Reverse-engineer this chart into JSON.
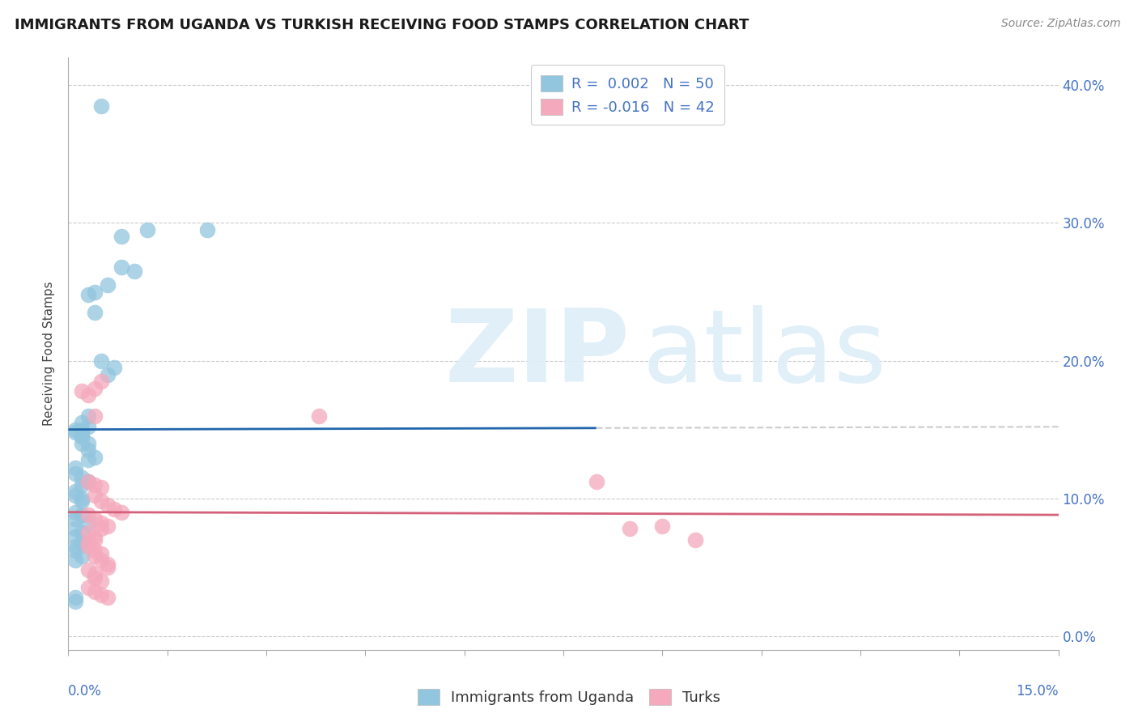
{
  "title": "IMMIGRANTS FROM UGANDA VS TURKISH RECEIVING FOOD STAMPS CORRELATION CHART",
  "source": "Source: ZipAtlas.com",
  "ylabel": "Receiving Food Stamps",
  "xlim": [
    0.0,
    0.15
  ],
  "ylim": [
    -0.01,
    0.42
  ],
  "yticks": [
    0.0,
    0.1,
    0.2,
    0.3,
    0.4
  ],
  "ytick_labels": [
    "0.0%",
    "10.0%",
    "20.0%",
    "30.0%",
    "40.0%"
  ],
  "xtick_label_left": "0.0%",
  "xtick_label_right": "15.0%",
  "legend1_r": " 0.002",
  "legend1_n": "50",
  "legend2_r": "-0.016",
  "legend2_n": "42",
  "uganda_color": "#92c5de",
  "turks_color": "#f4a9bc",
  "uganda_line_color": "#2166ac",
  "turks_line_color": "#d6604d",
  "turks_line_color2": "#e8a0a8",
  "grid_color": "#cccccc",
  "label_color": "#4472c4",
  "watermark_color": "#ddeeff",
  "uganda_x": [
    0.005,
    0.008,
    0.012,
    0.021,
    0.008,
    0.01,
    0.006,
    0.004,
    0.003,
    0.004,
    0.005,
    0.006,
    0.007,
    0.003,
    0.002,
    0.003,
    0.002,
    0.003,
    0.002,
    0.001,
    0.001,
    0.002,
    0.002,
    0.002,
    0.003,
    0.003,
    0.004,
    0.001,
    0.001,
    0.002,
    0.003,
    0.002,
    0.001,
    0.001,
    0.002,
    0.002,
    0.001,
    0.002,
    0.001,
    0.003,
    0.001,
    0.002,
    0.001,
    0.002,
    0.001,
    0.001,
    0.002,
    0.001,
    0.001,
    0.001
  ],
  "uganda_y": [
    0.385,
    0.268,
    0.295,
    0.295,
    0.29,
    0.265,
    0.255,
    0.25,
    0.248,
    0.235,
    0.2,
    0.19,
    0.195,
    0.16,
    0.155,
    0.152,
    0.145,
    0.14,
    0.15,
    0.15,
    0.148,
    0.145,
    0.148,
    0.14,
    0.135,
    0.128,
    0.13,
    0.122,
    0.118,
    0.115,
    0.112,
    0.11,
    0.105,
    0.102,
    0.1,
    0.098,
    0.09,
    0.088,
    0.085,
    0.082,
    0.078,
    0.075,
    0.072,
    0.068,
    0.065,
    0.062,
    0.058,
    0.055,
    0.028,
    0.025
  ],
  "turks_x": [
    0.002,
    0.003,
    0.004,
    0.005,
    0.004,
    0.003,
    0.004,
    0.005,
    0.004,
    0.005,
    0.006,
    0.007,
    0.008,
    0.003,
    0.004,
    0.005,
    0.006,
    0.005,
    0.003,
    0.004,
    0.004,
    0.003,
    0.003,
    0.004,
    0.005,
    0.004,
    0.005,
    0.006,
    0.006,
    0.003,
    0.004,
    0.004,
    0.005,
    0.003,
    0.004,
    0.005,
    0.006,
    0.038,
    0.08,
    0.09,
    0.085,
    0.095
  ],
  "turks_y": [
    0.178,
    0.175,
    0.18,
    0.185,
    0.16,
    0.112,
    0.11,
    0.108,
    0.102,
    0.098,
    0.095,
    0.092,
    0.09,
    0.088,
    0.085,
    0.082,
    0.08,
    0.078,
    0.075,
    0.072,
    0.07,
    0.068,
    0.065,
    0.062,
    0.06,
    0.058,
    0.055,
    0.052,
    0.05,
    0.048,
    0.045,
    0.042,
    0.04,
    0.035,
    0.032,
    0.03,
    0.028,
    0.16,
    0.112,
    0.08,
    0.078,
    0.07
  ],
  "uganda_line_y0": 0.15,
  "uganda_line_y1": 0.152,
  "uganda_line_x_solid_end": 0.08,
  "turks_line_y0": 0.09,
  "turks_line_y1": 0.088,
  "title_fontsize": 13,
  "source_fontsize": 10,
  "tick_fontsize": 12,
  "ylabel_fontsize": 11,
  "legend_fontsize": 13
}
